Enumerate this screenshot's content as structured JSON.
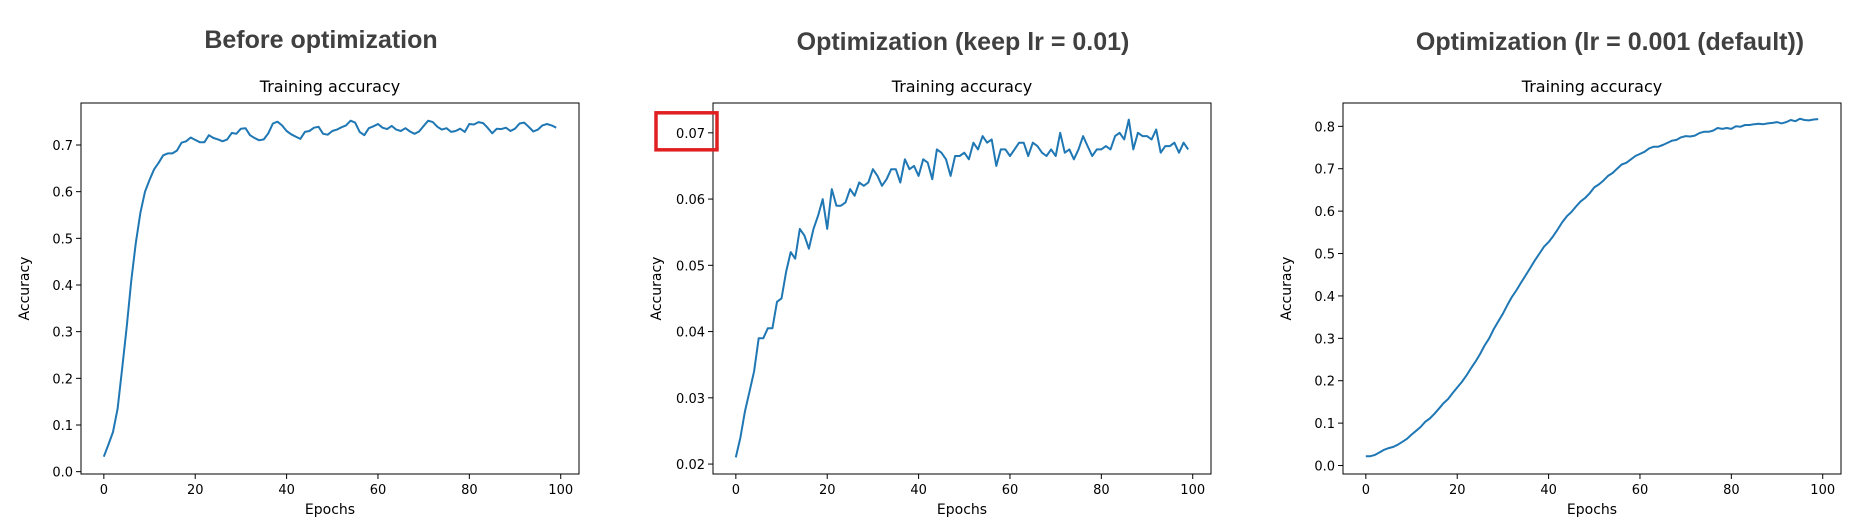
{
  "panel_titles": [
    "Before optimization",
    "Optimization (keep lr = 0.01)",
    "Optimization (lr = 0.001 (default))"
  ],
  "colors": {
    "line": "#1f77b4",
    "highlight": "#e02020"
  },
  "chart_data": [
    {
      "type": "line",
      "title": "Training accuracy",
      "xlabel": "Epochs",
      "ylabel": "Accuracy",
      "xlim": [
        -5,
        104
      ],
      "ylim": [
        -0.005,
        0.79
      ],
      "xticks": [
        0,
        20,
        40,
        60,
        80,
        100
      ],
      "yticks": [
        0.0,
        0.1,
        0.2,
        0.3,
        0.4,
        0.5,
        0.6,
        0.7
      ],
      "ytick_labels": [
        "0.0",
        "0.1",
        "0.2",
        "0.3",
        "0.4",
        "0.5",
        "0.6",
        "0.7"
      ],
      "grid": false,
      "series": [
        {
          "x": [
            0,
            1,
            2,
            3,
            4,
            5,
            6,
            7,
            8,
            9,
            10,
            11,
            12,
            13,
            14,
            15,
            16,
            17,
            18,
            19,
            20,
            21,
            22,
            23,
            24,
            25,
            26,
            27,
            28,
            29,
            30,
            31,
            32,
            33,
            34,
            35,
            36,
            37,
            38,
            39,
            40,
            41,
            42,
            43,
            44,
            45,
            46,
            47,
            48,
            49,
            50,
            51,
            52,
            53,
            54,
            55,
            56,
            57,
            58,
            59,
            60,
            61,
            62,
            63,
            64,
            65,
            66,
            67,
            68,
            69,
            70,
            71,
            72,
            73,
            74,
            75,
            76,
            77,
            78,
            79,
            80,
            81,
            82,
            83,
            84,
            85,
            86,
            87,
            88,
            89,
            90,
            91,
            92,
            93,
            94,
            95,
            96,
            97,
            98,
            99
          ],
          "values": [
            0.032,
            0.058,
            0.085,
            0.135,
            0.22,
            0.31,
            0.41,
            0.49,
            0.555,
            0.6,
            0.625,
            0.648,
            0.662,
            0.678,
            0.682,
            0.682,
            0.688,
            0.705,
            0.708,
            0.716,
            0.711,
            0.706,
            0.706,
            0.721,
            0.715,
            0.712,
            0.708,
            0.712,
            0.726,
            0.724,
            0.735,
            0.736,
            0.721,
            0.715,
            0.71,
            0.712,
            0.725,
            0.746,
            0.75,
            0.742,
            0.73,
            0.723,
            0.718,
            0.713,
            0.728,
            0.73,
            0.737,
            0.739,
            0.724,
            0.722,
            0.73,
            0.733,
            0.738,
            0.742,
            0.752,
            0.748,
            0.728,
            0.721,
            0.736,
            0.74,
            0.745,
            0.737,
            0.734,
            0.741,
            0.733,
            0.73,
            0.736,
            0.729,
            0.724,
            0.729,
            0.741,
            0.752,
            0.749,
            0.739,
            0.733,
            0.736,
            0.728,
            0.73,
            0.735,
            0.728,
            0.745,
            0.744,
            0.749,
            0.747,
            0.737,
            0.725,
            0.735,
            0.734,
            0.737,
            0.73,
            0.735,
            0.746,
            0.748,
            0.739,
            0.729,
            0.733,
            0.742,
            0.745,
            0.742,
            0.737
          ]
        }
      ]
    },
    {
      "type": "line",
      "title": "Training accuracy",
      "xlabel": "Epochs",
      "ylabel": "Accuracy",
      "xlim": [
        -5,
        104
      ],
      "ylim": [
        0.0185,
        0.0745
      ],
      "xticks": [
        0,
        20,
        40,
        60,
        80,
        100
      ],
      "yticks": [
        0.02,
        0.03,
        0.04,
        0.05,
        0.06,
        0.07
      ],
      "ytick_labels": [
        "0.02",
        "0.03",
        "0.04",
        "0.05",
        "0.06",
        "0.07"
      ],
      "grid": false,
      "highlight_tick": "0.07",
      "series": [
        {
          "x": [
            0,
            1,
            2,
            3,
            4,
            5,
            6,
            7,
            8,
            9,
            10,
            11,
            12,
            13,
            14,
            15,
            16,
            17,
            18,
            19,
            20,
            21,
            22,
            23,
            24,
            25,
            26,
            27,
            28,
            29,
            30,
            31,
            32,
            33,
            34,
            35,
            36,
            37,
            38,
            39,
            40,
            41,
            42,
            43,
            44,
            45,
            46,
            47,
            48,
            49,
            50,
            51,
            52,
            53,
            54,
            55,
            56,
            57,
            58,
            59,
            60,
            61,
            62,
            63,
            64,
            65,
            66,
            67,
            68,
            69,
            70,
            71,
            72,
            73,
            74,
            75,
            76,
            77,
            78,
            79,
            80,
            81,
            82,
            83,
            84,
            85,
            86,
            87,
            88,
            89,
            90,
            91,
            92,
            93,
            94,
            95,
            96,
            97,
            98,
            99
          ],
          "values": [
            0.021,
            0.024,
            0.028,
            0.031,
            0.034,
            0.039,
            0.039,
            0.0405,
            0.0405,
            0.0445,
            0.045,
            0.049,
            0.052,
            0.051,
            0.0555,
            0.0545,
            0.0525,
            0.0555,
            0.0575,
            0.06,
            0.0555,
            0.0615,
            0.059,
            0.059,
            0.0595,
            0.0615,
            0.0605,
            0.0625,
            0.062,
            0.0625,
            0.0645,
            0.0635,
            0.062,
            0.063,
            0.0645,
            0.0645,
            0.0625,
            0.066,
            0.0645,
            0.065,
            0.0635,
            0.066,
            0.0655,
            0.063,
            0.0675,
            0.067,
            0.066,
            0.0635,
            0.0665,
            0.0665,
            0.067,
            0.066,
            0.0685,
            0.0675,
            0.0695,
            0.0685,
            0.069,
            0.065,
            0.0675,
            0.0675,
            0.0665,
            0.0675,
            0.0685,
            0.0685,
            0.0665,
            0.0685,
            0.068,
            0.067,
            0.0665,
            0.0675,
            0.0665,
            0.07,
            0.067,
            0.0675,
            0.066,
            0.0675,
            0.0695,
            0.068,
            0.0665,
            0.0675,
            0.0675,
            0.068,
            0.0675,
            0.0695,
            0.07,
            0.069,
            0.072,
            0.0675,
            0.07,
            0.0695,
            0.0695,
            0.069,
            0.0705,
            0.067,
            0.068,
            0.068,
            0.0685,
            0.067,
            0.0685,
            0.0675
          ]
        }
      ]
    },
    {
      "type": "line",
      "title": "Training accuracy",
      "xlabel": "Epochs",
      "ylabel": "Accuracy",
      "xlim": [
        -5,
        104
      ],
      "ylim": [
        -0.02,
        0.855
      ],
      "xticks": [
        0,
        20,
        40,
        60,
        80,
        100
      ],
      "yticks": [
        0.0,
        0.1,
        0.2,
        0.3,
        0.4,
        0.5,
        0.6,
        0.7,
        0.8
      ],
      "ytick_labels": [
        "0.0",
        "0.1",
        "0.2",
        "0.3",
        "0.4",
        "0.5",
        "0.6",
        "0.7",
        "0.8"
      ],
      "grid": false,
      "series": [
        {
          "x": [
            0,
            1,
            2,
            3,
            4,
            5,
            6,
            7,
            8,
            9,
            10,
            11,
            12,
            13,
            14,
            15,
            16,
            17,
            18,
            19,
            20,
            21,
            22,
            23,
            24,
            25,
            26,
            27,
            28,
            29,
            30,
            31,
            32,
            33,
            34,
            35,
            36,
            37,
            38,
            39,
            40,
            41,
            42,
            43,
            44,
            45,
            46,
            47,
            48,
            49,
            50,
            51,
            52,
            53,
            54,
            55,
            56,
            57,
            58,
            59,
            60,
            61,
            62,
            63,
            64,
            65,
            66,
            67,
            68,
            69,
            70,
            71,
            72,
            73,
            74,
            75,
            76,
            77,
            78,
            79,
            80,
            81,
            82,
            83,
            84,
            85,
            86,
            87,
            88,
            89,
            90,
            91,
            92,
            93,
            94,
            95,
            96,
            97,
            98,
            99
          ],
          "values": [
            0.022,
            0.022,
            0.025,
            0.031,
            0.037,
            0.041,
            0.044,
            0.049,
            0.056,
            0.063,
            0.073,
            0.082,
            0.091,
            0.103,
            0.111,
            0.122,
            0.134,
            0.147,
            0.157,
            0.171,
            0.184,
            0.197,
            0.212,
            0.229,
            0.245,
            0.263,
            0.283,
            0.3,
            0.322,
            0.34,
            0.358,
            0.379,
            0.398,
            0.414,
            0.432,
            0.449,
            0.466,
            0.484,
            0.5,
            0.516,
            0.527,
            0.541,
            0.557,
            0.574,
            0.588,
            0.598,
            0.611,
            0.623,
            0.631,
            0.642,
            0.656,
            0.663,
            0.672,
            0.683,
            0.69,
            0.7,
            0.71,
            0.714,
            0.722,
            0.73,
            0.735,
            0.74,
            0.748,
            0.752,
            0.752,
            0.756,
            0.761,
            0.766,
            0.768,
            0.774,
            0.777,
            0.776,
            0.778,
            0.784,
            0.787,
            0.787,
            0.79,
            0.796,
            0.794,
            0.796,
            0.794,
            0.8,
            0.799,
            0.803,
            0.803,
            0.805,
            0.806,
            0.805,
            0.807,
            0.808,
            0.81,
            0.807,
            0.81,
            0.815,
            0.812,
            0.818,
            0.815,
            0.814,
            0.816,
            0.817
          ]
        }
      ]
    }
  ]
}
